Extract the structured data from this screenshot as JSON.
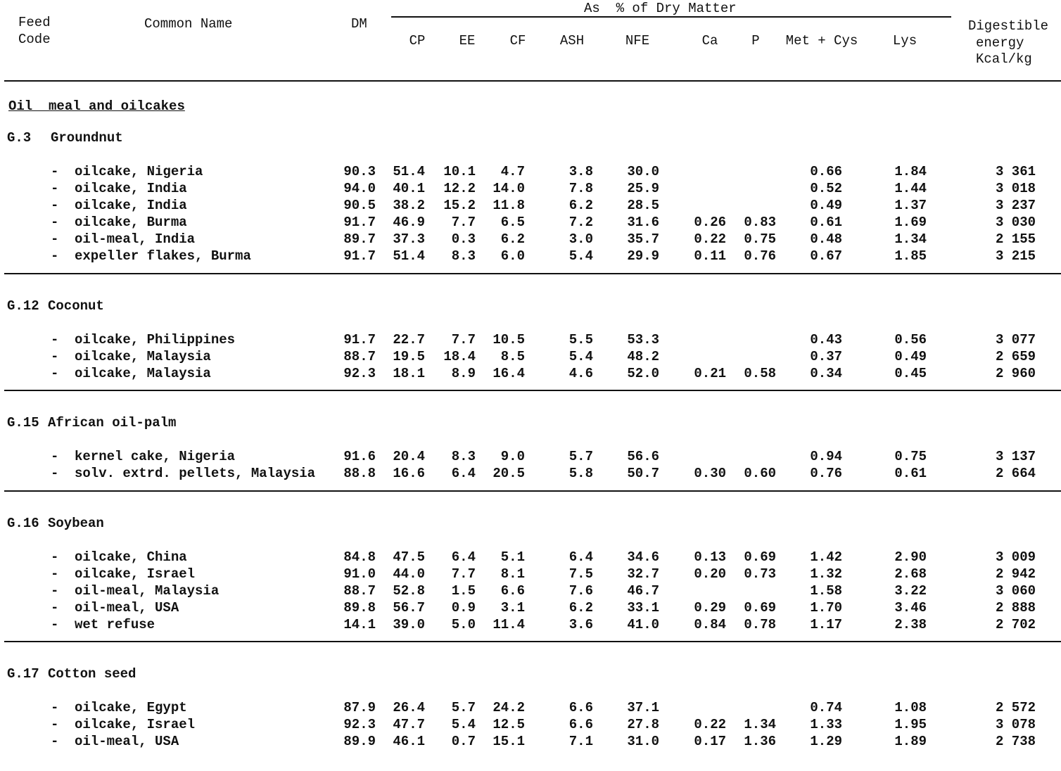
{
  "header": {
    "feed_code": [
      "Feed",
      "Code"
    ],
    "common_name": "Common Name",
    "dm": "DM",
    "group_label": "As  % of Dry Matter",
    "columns": [
      "CP",
      "EE",
      "CF",
      "ASH",
      "NFE",
      "Ca",
      "P",
      "Met + Cys",
      "Lys"
    ],
    "energy": [
      "Digestible",
      "energy",
      "Kcal/kg"
    ]
  },
  "section_title": "Oil  meal and oilcakes",
  "groups": [
    {
      "code": "G.3",
      "name": "Groundnut",
      "rows": [
        {
          "name": "oilcake, Nigeria",
          "v": [
            "90.3",
            "51.4",
            "10.1",
            "4.7",
            "3.8",
            "30.0",
            "",
            "",
            "0.66",
            "1.84",
            "3 361"
          ]
        },
        {
          "name": "oilcake, India",
          "v": [
            "94.0",
            "40.1",
            "12.2",
            "14.0",
            "7.8",
            "25.9",
            "",
            "",
            "0.52",
            "1.44",
            "3 018"
          ]
        },
        {
          "name": "oilcake, India",
          "v": [
            "90.5",
            "38.2",
            "15.2",
            "11.8",
            "6.2",
            "28.5",
            "",
            "",
            "0.49",
            "1.37",
            "3 237"
          ]
        },
        {
          "name": "oilcake, Burma",
          "v": [
            "91.7",
            "46.9",
            "7.7",
            "6.5",
            "7.2",
            "31.6",
            "0.26",
            "0.83",
            "0.61",
            "1.69",
            "3 030"
          ]
        },
        {
          "name": "oil-meal, India",
          "v": [
            "89.7",
            "37.3",
            "0.3",
            "6.2",
            "3.0",
            "35.7",
            "0.22",
            "0.75",
            "0.48",
            "1.34",
            "2 155"
          ]
        },
        {
          "name": "expeller flakes, Burma",
          "v": [
            "91.7",
            "51.4",
            "8.3",
            "6.0",
            "5.4",
            "29.9",
            "0.11",
            "0.76",
            "0.67",
            "1.85",
            "3 215"
          ]
        }
      ]
    },
    {
      "code": "G.12",
      "name": "Coconut",
      "rows": [
        {
          "name": "oilcake, Philippines",
          "v": [
            "91.7",
            "22.7",
            "7.7",
            "10.5",
            "5.5",
            "53.3",
            "",
            "",
            "0.43",
            "0.56",
            "3 077"
          ]
        },
        {
          "name": "oilcake, Malaysia",
          "v": [
            "88.7",
            "19.5",
            "18.4",
            "8.5",
            "5.4",
            "48.2",
            "",
            "",
            "0.37",
            "0.49",
            "2 659"
          ]
        },
        {
          "name": "oilcake, Malaysia",
          "v": [
            "92.3",
            "18.1",
            "8.9",
            "16.4",
            "4.6",
            "52.0",
            "0.21",
            "0.58",
            "0.34",
            "0.45",
            "2 960"
          ]
        }
      ]
    },
    {
      "code": "G.15",
      "name": "African oil-palm",
      "rows": [
        {
          "name": "kernel cake, Nigeria",
          "v": [
            "91.6",
            "20.4",
            "8.3",
            "9.0",
            "5.7",
            "56.6",
            "",
            "",
            "0.94",
            "0.75",
            "3 137"
          ]
        },
        {
          "name": "solv. extrd. pellets, Malaysia",
          "v": [
            "88.8",
            "16.6",
            "6.4",
            "20.5",
            "5.8",
            "50.7",
            "0.30",
            "0.60",
            "0.76",
            "0.61",
            "2 664"
          ]
        }
      ]
    },
    {
      "code": "G.16",
      "name": "Soybean",
      "rows": [
        {
          "name": "oilcake, China",
          "v": [
            "84.8",
            "47.5",
            "6.4",
            "5.1",
            "6.4",
            "34.6",
            "0.13",
            "0.69",
            "1.42",
            "2.90",
            "3 009"
          ]
        },
        {
          "name": "oilcake, Israel",
          "v": [
            "91.0",
            "44.0",
            "7.7",
            "8.1",
            "7.5",
            "32.7",
            "0.20",
            "0.73",
            "1.32",
            "2.68",
            "2 942"
          ]
        },
        {
          "name": "oil-meal, Malaysia",
          "v": [
            "88.7",
            "52.8",
            "1.5",
            "6.6",
            "7.6",
            "46.7",
            "",
            "",
            "1.58",
            "3.22",
            "3 060"
          ]
        },
        {
          "name": "oil-meal, USA",
          "v": [
            "89.8",
            "56.7",
            "0.9",
            "3.1",
            "6.2",
            "33.1",
            "0.29",
            "0.69",
            "1.70",
            "3.46",
            "2 888"
          ]
        },
        {
          "name": "wet refuse",
          "v": [
            "14.1",
            "39.0",
            "5.0",
            "11.4",
            "3.6",
            "41.0",
            "0.84",
            "0.78",
            "1.17",
            "2.38",
            "2 702"
          ]
        }
      ]
    },
    {
      "code": "G.17",
      "name": "Cotton seed",
      "rows": [
        {
          "name": "oilcake, Egypt",
          "v": [
            "87.9",
            "26.4",
            "5.7",
            "24.2",
            "6.6",
            "37.1",
            "",
            "",
            "0.74",
            "1.08",
            "2 572"
          ]
        },
        {
          "name": "oilcake, Israel",
          "v": [
            "92.3",
            "47.7",
            "5.4",
            "12.5",
            "6.6",
            "27.8",
            "0.22",
            "1.34",
            "1.33",
            "1.95",
            "3 078"
          ]
        },
        {
          "name": "oil-meal, USA",
          "v": [
            "89.9",
            "46.1",
            "0.7",
            "15.1",
            "7.1",
            "31.0",
            "0.17",
            "1.36",
            "1.29",
            "1.89",
            "2 738"
          ]
        }
      ]
    }
  ],
  "row_dash": "-"
}
